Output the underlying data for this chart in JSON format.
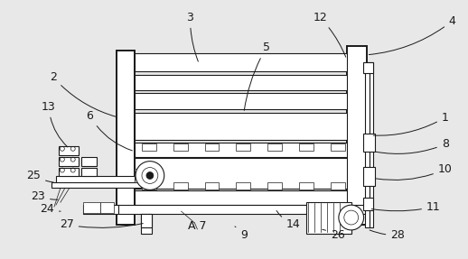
{
  "bg_color": "#e8e8e8",
  "line_color": "#1a1a1a",
  "lw_main": 1.4,
  "lw_thin": 0.8,
  "lw_xtra": 0.5,
  "figsize": [
    5.18,
    2.87
  ],
  "dpi": 100,
  "label_fs": 9
}
